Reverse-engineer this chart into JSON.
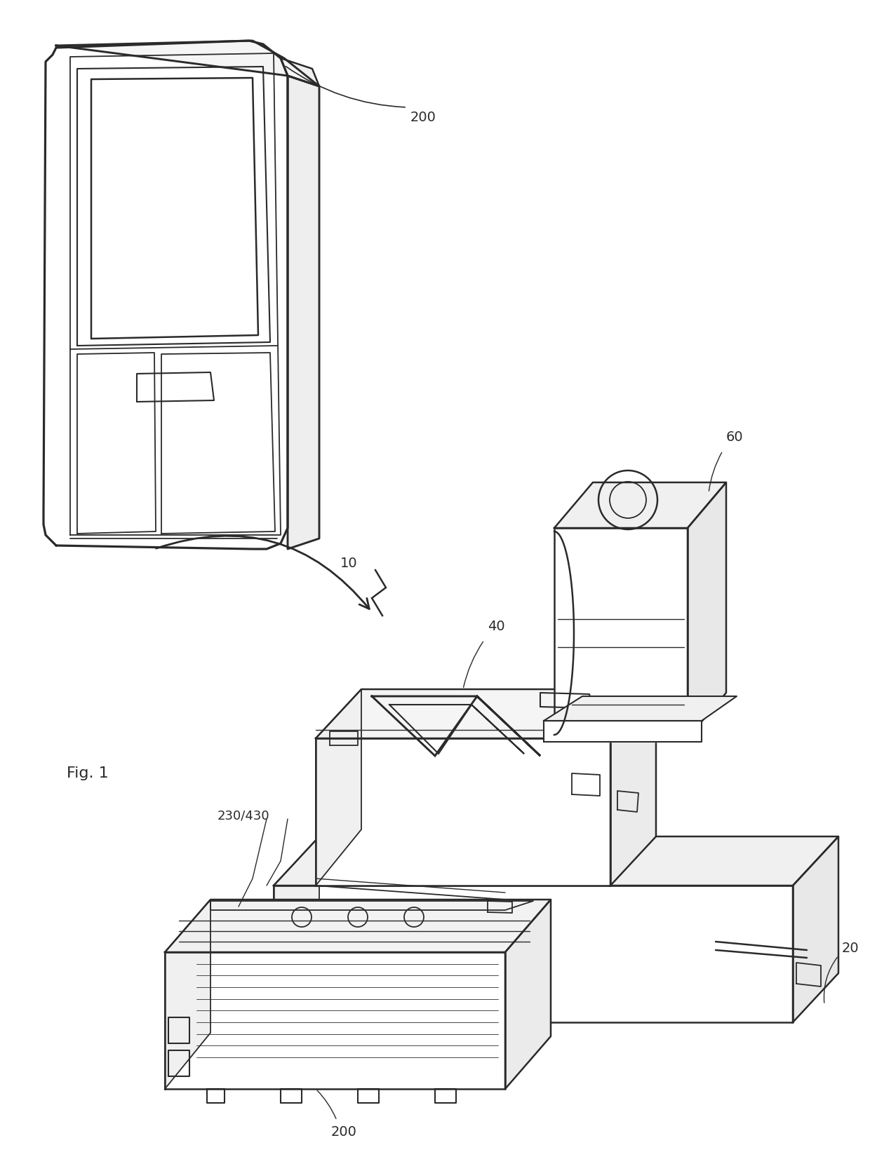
{
  "background_color": "#ffffff",
  "line_color": "#2a2a2a",
  "line_width": 1.8,
  "label_fontsize": 14,
  "fig1_fontsize": 16
}
